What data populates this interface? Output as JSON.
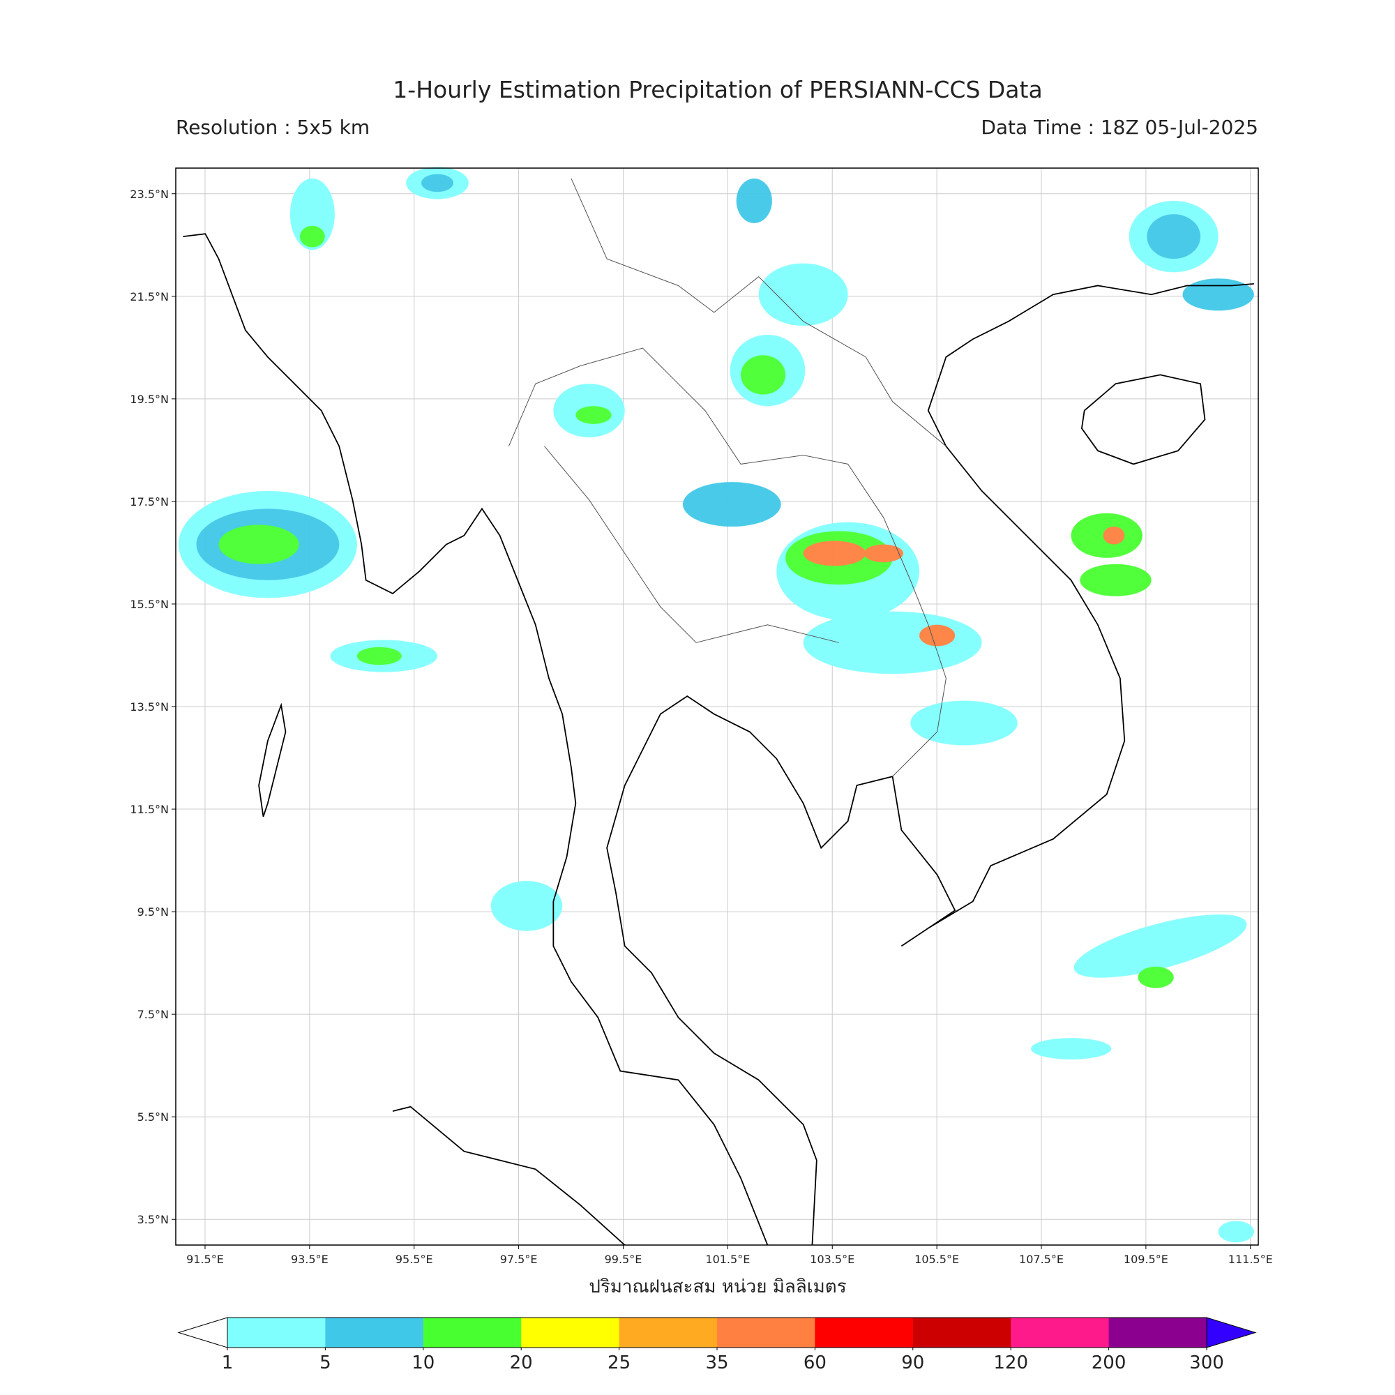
{
  "title": "1-Hourly Estimation Precipitation of PERSIANN-CCS Data",
  "resolution": "Resolution : 5x5 km",
  "data_time": "Data Time : 18Z 05-Jul-2025",
  "map": {
    "xlim": [
      90.94,
      111.65
    ],
    "ylim": [
      3.0,
      24.0
    ],
    "grid": true,
    "xticks": [
      {
        "value": 91.5,
        "label": "91.5°E"
      },
      {
        "value": 93.5,
        "label": "93.5°E"
      },
      {
        "value": 95.5,
        "label": "95.5°E"
      },
      {
        "value": 97.5,
        "label": "97.5°E"
      },
      {
        "value": 99.5,
        "label": "99.5°E"
      },
      {
        "value": 101.5,
        "label": "101.5°E"
      },
      {
        "value": 103.5,
        "label": "103.5°E"
      },
      {
        "value": 105.5,
        "label": "105.5°E"
      },
      {
        "value": 107.5,
        "label": "107.5°E"
      },
      {
        "value": 109.5,
        "label": "109.5°E"
      },
      {
        "value": 111.5,
        "label": "111.5°E"
      }
    ],
    "yticks": [
      {
        "value": 3.5,
        "label": "3.5°N"
      },
      {
        "value": 5.5,
        "label": "5.5°N"
      },
      {
        "value": 7.5,
        "label": "7.5°N"
      },
      {
        "value": 9.5,
        "label": "9.5°N"
      },
      {
        "value": 11.5,
        "label": "11.5°N"
      },
      {
        "value": 13.5,
        "label": "13.5°N"
      },
      {
        "value": 15.5,
        "label": "15.5°N"
      },
      {
        "value": 17.5,
        "label": "17.5°N"
      },
      {
        "value": 19.5,
        "label": "19.5°N"
      },
      {
        "value": 21.5,
        "label": "21.5°N"
      },
      {
        "value": 23.5,
        "label": "23.5°N"
      }
    ]
  },
  "xlabel": "ปริมาณฝนสะสม หน่วย มิลลิเมตร",
  "colorbar": {
    "levels": [
      1,
      5,
      10,
      20,
      25,
      35,
      60,
      90,
      120,
      200,
      300
    ],
    "colors": [
      "#80ffff",
      "#40c8e8",
      "#48ff30",
      "#ffff00",
      "#ffaa20",
      "#ff8040",
      "#ff0000",
      "#cc0000",
      "#ff1a8c",
      "#8c0090"
    ],
    "under_color": "#ffffff",
    "over_color": "#3300ff"
  }
}
